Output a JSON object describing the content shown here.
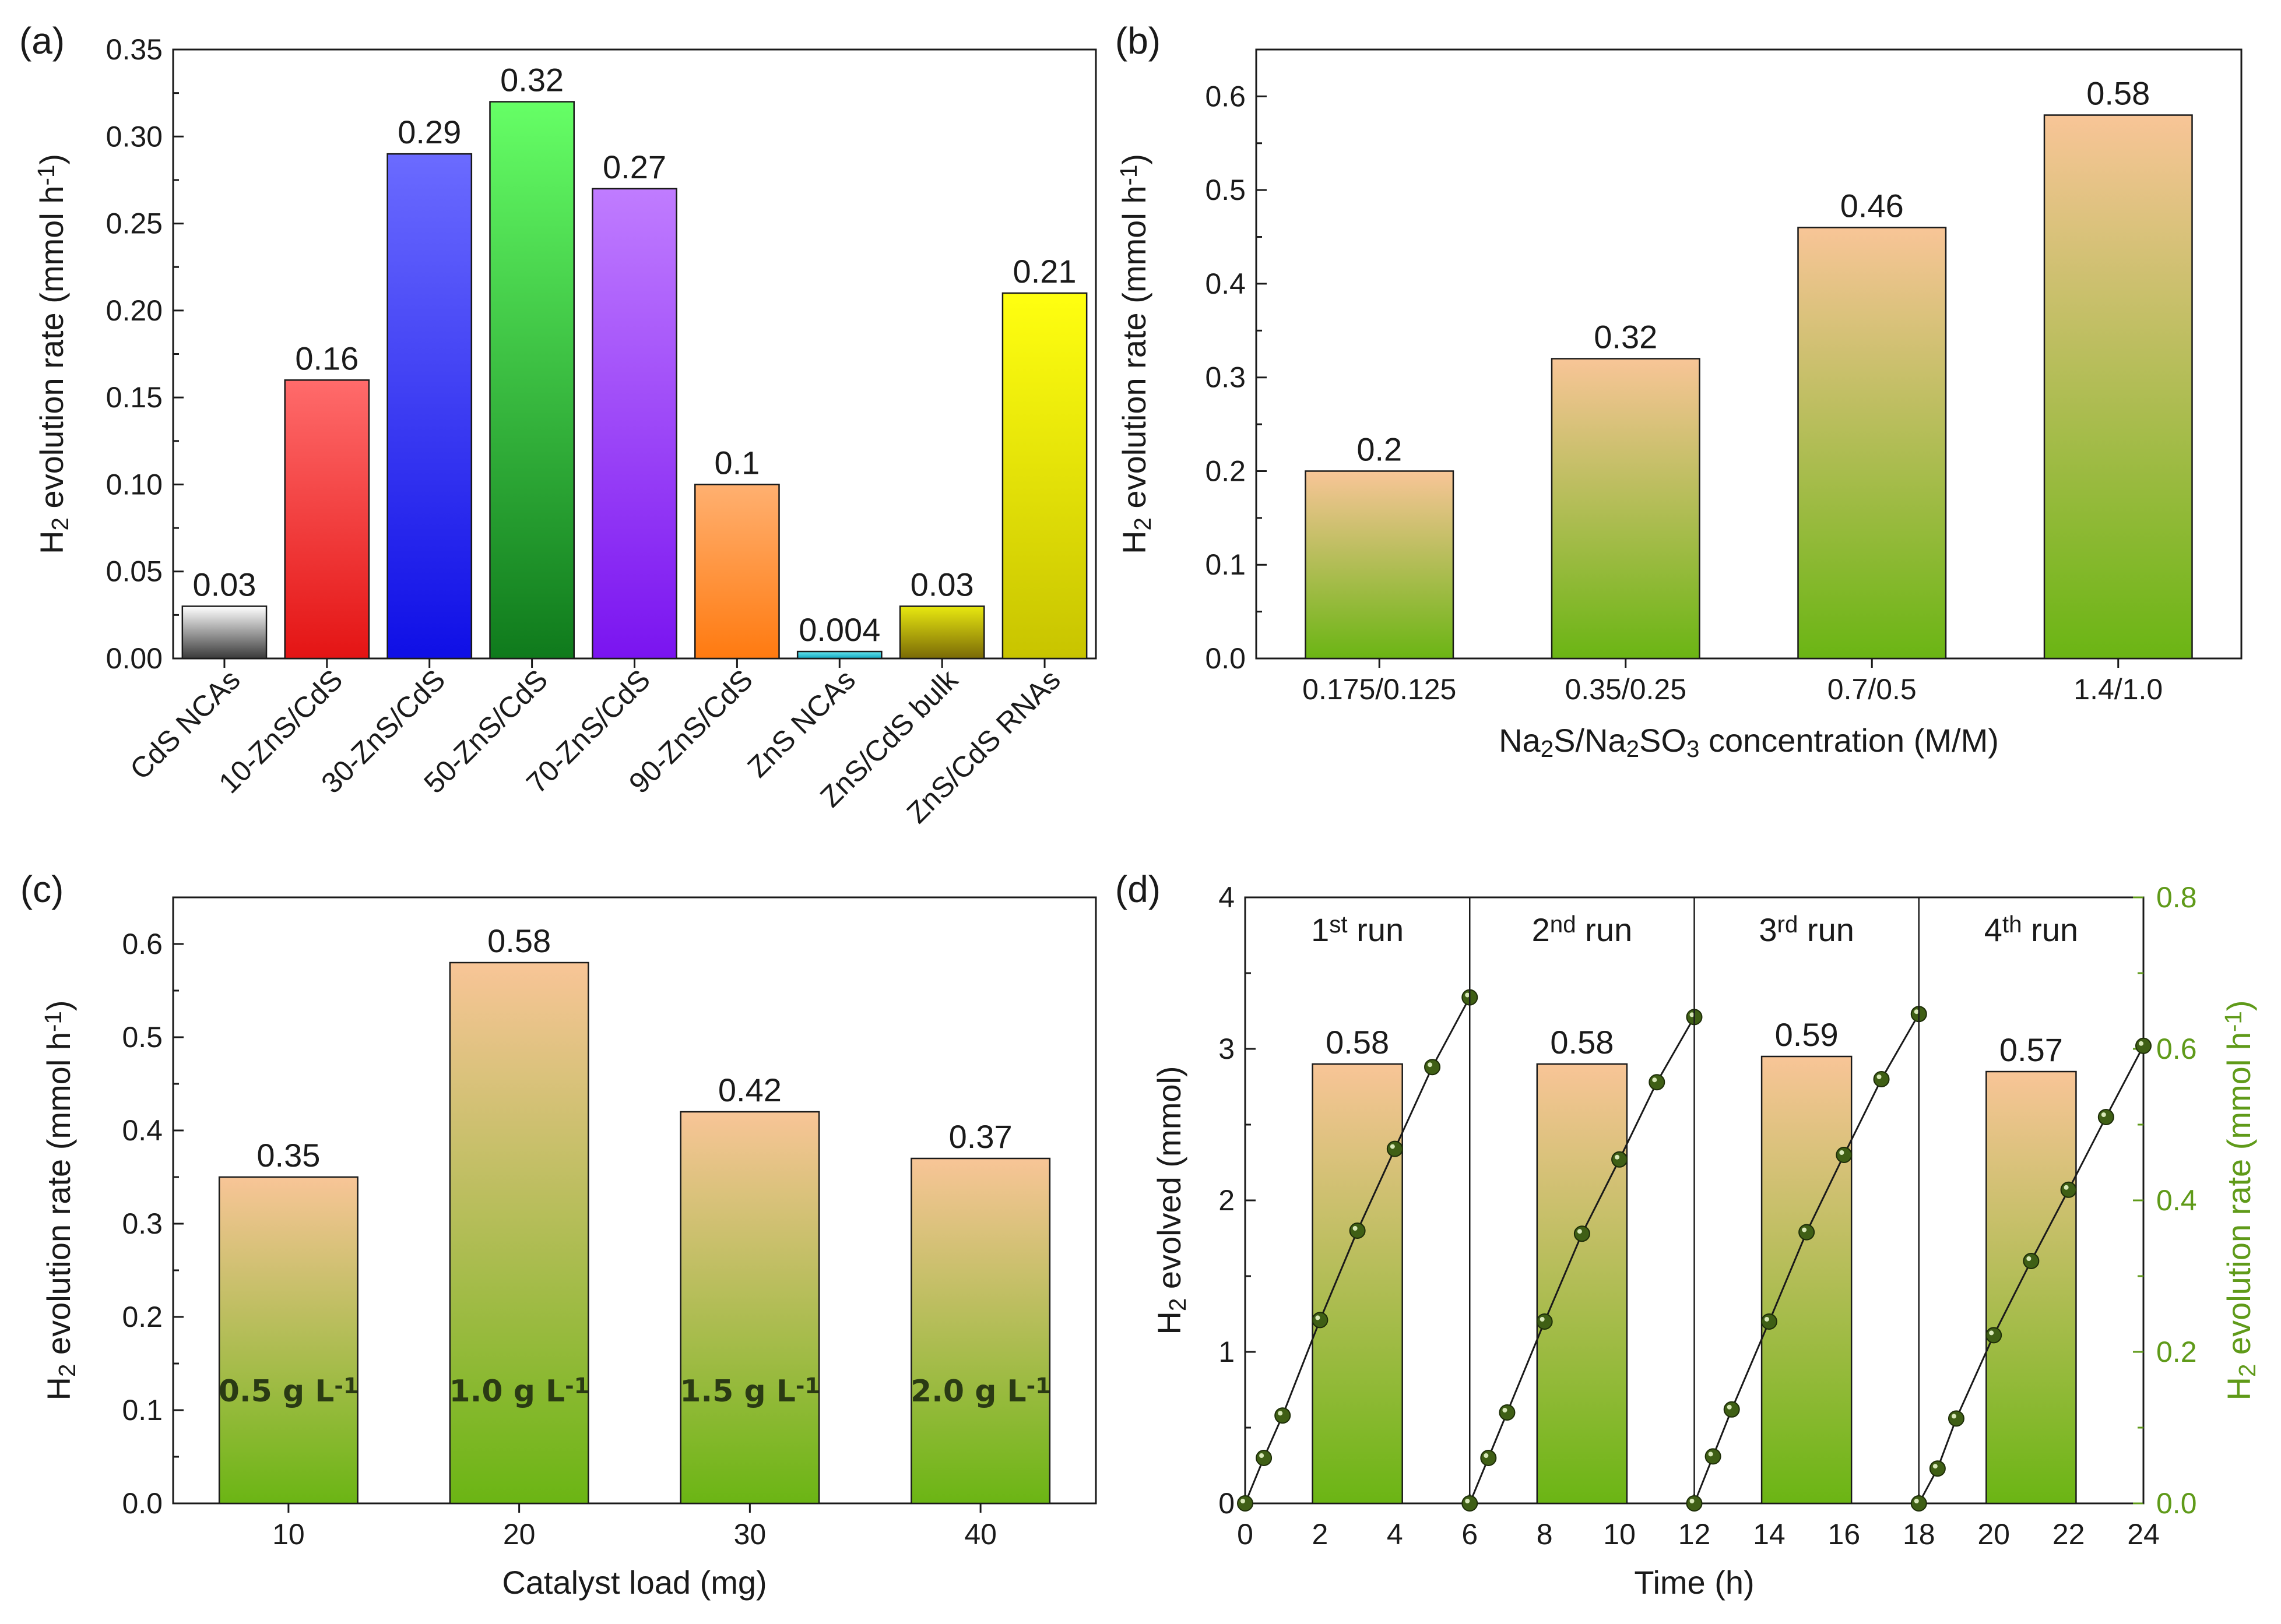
{
  "colors": {
    "orange_top": "#f8c597",
    "green_bottom": "#6bb514",
    "right_axis": "#5f9a19",
    "line": "#1a1a1a",
    "marker": "#3f5f15"
  },
  "chart_data": [
    {
      "panel": "(a)",
      "type": "bar",
      "ylabel": "H2 evolution rate (mmol h-1)",
      "ylim": [
        0,
        0.35
      ],
      "yticks": [
        "0.00",
        "0.05",
        "0.10",
        "0.15",
        "0.20",
        "0.25",
        "0.30",
        "0.35"
      ],
      "categories": [
        "CdS NCAs",
        "10-ZnS/CdS",
        "30-ZnS/CdS",
        "50-ZnS/CdS",
        "70-ZnS/CdS",
        "90-ZnS/CdS",
        "ZnS NCAs",
        "ZnS/CdS bulk",
        "ZnS/CdS RNAs"
      ],
      "values": [
        0.03,
        0.16,
        0.29,
        0.32,
        0.27,
        0.1,
        0.004,
        0.03,
        0.21
      ],
      "labels": [
        "0.03",
        "0.16",
        "0.29",
        "0.32",
        "0.27",
        "0.1",
        "0.004",
        "0.03",
        "0.21"
      ],
      "bar_colors": [
        [
          "#ffffff",
          "#3a3a3a"
        ],
        [
          "#ff6b6b",
          "#e41414"
        ],
        [
          "#6b6bff",
          "#0f0fe6"
        ],
        [
          "#66ff66",
          "#0f7a1c"
        ],
        [
          "#c07cff",
          "#7a14f0"
        ],
        [
          "#ffb070",
          "#ff7a10"
        ],
        [
          "#66e6ee",
          "#12a7c0"
        ],
        [
          "#e8e810",
          "#7a6a06"
        ],
        [
          "#ffff10",
          "#c8c400"
        ]
      ]
    },
    {
      "panel": "(b)",
      "type": "bar",
      "ylabel": "H2 evolution rate (mmol h-1)",
      "xlabel": "Na2S/Na2SO3 concentration (M/M)",
      "ylim": [
        0,
        0.65
      ],
      "yticks": [
        "0.0",
        "0.1",
        "0.2",
        "0.3",
        "0.4",
        "0.5",
        "0.6"
      ],
      "categories": [
        "0.175/0.125",
        "0.35/0.25",
        "0.7/0.5",
        "1.4/1.0"
      ],
      "values": [
        0.2,
        0.32,
        0.46,
        0.58
      ],
      "labels": [
        "0.2",
        "0.32",
        "0.46",
        "0.58"
      ]
    },
    {
      "panel": "(c)",
      "type": "bar",
      "ylabel": "H2 evolution rate (mmol h-1)",
      "xlabel": "Catalyst load (mg)",
      "ylim": [
        0,
        0.65
      ],
      "yticks": [
        "0.0",
        "0.1",
        "0.2",
        "0.3",
        "0.4",
        "0.5",
        "0.6"
      ],
      "categories": [
        "10",
        "20",
        "30",
        "40"
      ],
      "values": [
        0.35,
        0.58,
        0.42,
        0.37
      ],
      "labels": [
        "0.35",
        "0.58",
        "0.42",
        "0.37"
      ],
      "bar_annotations": [
        "0.5 g L-1",
        "1.0 g L-1",
        "1.5 g L-1",
        "2.0 g L-1"
      ]
    },
    {
      "panel": "(d)",
      "type": "line+bar",
      "xlabel": "Time (h)",
      "ylabel_left": "H2 evolved (mmol)",
      "ylabel_right": "H2 evolution rate (mmol h-1)",
      "xlim": [
        0,
        24
      ],
      "ylim_left": [
        0,
        4
      ],
      "ylim_right": [
        0,
        0.8
      ],
      "xticks": [
        "0",
        "2",
        "4",
        "6",
        "8",
        "10",
        "12",
        "14",
        "16",
        "18",
        "20",
        "22",
        "24"
      ],
      "yticks_left": [
        "0",
        "1",
        "2",
        "3",
        "4"
      ],
      "yticks_right": [
        "0.0",
        "0.2",
        "0.4",
        "0.6",
        "0.8"
      ],
      "runs": [
        {
          "sup": "st",
          "label": "run",
          "start": 0,
          "end": 6,
          "rate": 0.58,
          "rate_label": "0.58",
          "points": [
            [
              0,
              0
            ],
            [
              0.5,
              0.3
            ],
            [
              1,
              0.58
            ],
            [
              2,
              1.21
            ],
            [
              3,
              1.8
            ],
            [
              4,
              2.34
            ],
            [
              5,
              2.88
            ],
            [
              6,
              3.34
            ]
          ]
        },
        {
          "sup": "nd",
          "label": "run",
          "start": 6,
          "end": 12,
          "rate": 0.58,
          "rate_label": "0.58",
          "points": [
            [
              6,
              0
            ],
            [
              6.5,
              0.3
            ],
            [
              7,
              0.6
            ],
            [
              8,
              1.2
            ],
            [
              9,
              1.78
            ],
            [
              10,
              2.27
            ],
            [
              11,
              2.78
            ],
            [
              12,
              3.21
            ]
          ]
        },
        {
          "sup": "rd",
          "label": "run",
          "start": 12,
          "end": 18,
          "rate": 0.59,
          "rate_label": "0.59",
          "points": [
            [
              12,
              0
            ],
            [
              12.5,
              0.31
            ],
            [
              13,
              0.62
            ],
            [
              14,
              1.2
            ],
            [
              15,
              1.79
            ],
            [
              16,
              2.3
            ],
            [
              17,
              2.8
            ],
            [
              18,
              3.23
            ]
          ]
        },
        {
          "sup": "th",
          "label": "run",
          "start": 18,
          "end": 24,
          "rate": 0.57,
          "rate_label": "0.57",
          "points": [
            [
              18,
              0
            ],
            [
              18.5,
              0.23
            ],
            [
              19,
              0.56
            ],
            [
              20,
              1.11
            ],
            [
              21,
              1.6
            ],
            [
              22,
              2.07
            ],
            [
              23,
              2.55
            ],
            [
              24,
              3.02
            ]
          ]
        }
      ],
      "run_numbers": [
        "1",
        "2",
        "3",
        "4"
      ]
    }
  ]
}
